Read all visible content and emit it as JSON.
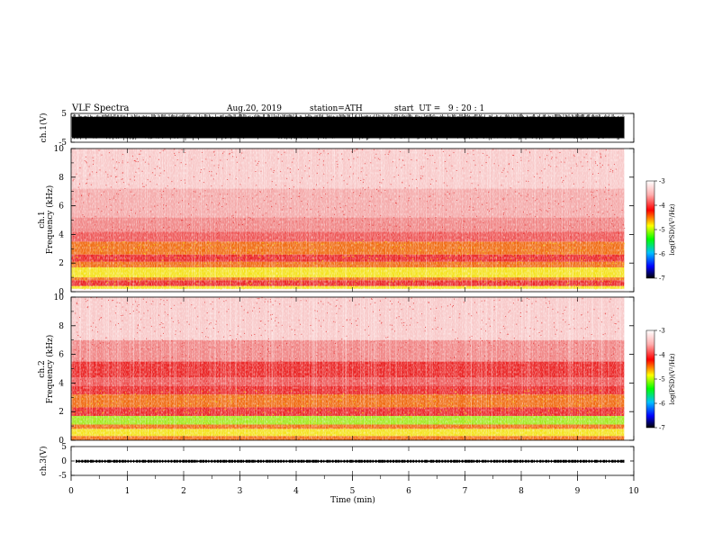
{
  "header": {
    "title": "VLF Spectra",
    "date": "Aug.20, 2019",
    "station": "station=ATH",
    "start_time": "start  UT =   9 : 20 : 1"
  },
  "chart_data": [
    {
      "type": "line",
      "panel": "ch1-waveform",
      "ylabel": "ch.1(V)",
      "ylim": [
        -5,
        5
      ],
      "yticks": [
        "5",
        "-5"
      ],
      "xlim": [
        0,
        10
      ],
      "data_end_min": 9.83,
      "amplitude_band_V": [
        -3.6,
        3.8
      ],
      "color": "#000000"
    },
    {
      "type": "heatmap",
      "panel": "ch1-spectrogram",
      "ylabel": "ch.1\nFrequency (kHz)",
      "ylim": [
        0,
        10
      ],
      "yticks": [
        "0",
        "2",
        "4",
        "6",
        "8",
        "10"
      ],
      "xlim": [
        0,
        10
      ],
      "data_end_min": 9.83,
      "bands": [
        {
          "f0": 0.0,
          "f1": 0.2,
          "level": "white"
        },
        {
          "f0": 0.2,
          "f1": 0.4,
          "level": "yellow"
        },
        {
          "f0": 0.4,
          "f1": 0.8,
          "level": "red"
        },
        {
          "f0": 0.8,
          "f1": 1.0,
          "level": "orange"
        },
        {
          "f0": 1.0,
          "f1": 1.7,
          "level": "yellow"
        },
        {
          "f0": 1.7,
          "f1": 2.1,
          "level": "orange"
        },
        {
          "f0": 2.1,
          "f1": 2.6,
          "level": "red"
        },
        {
          "f0": 2.6,
          "f1": 3.5,
          "level": "orange"
        },
        {
          "f0": 3.5,
          "f1": 4.2,
          "level": "red-light"
        },
        {
          "f0": 4.2,
          "f1": 5.2,
          "level": "pink"
        },
        {
          "f0": 5.2,
          "f1": 7.2,
          "level": "pink-light"
        },
        {
          "f0": 7.2,
          "f1": 10.0,
          "level": "white-pink"
        }
      ]
    },
    {
      "type": "heatmap",
      "panel": "ch2-spectrogram",
      "ylabel": "ch.2\nFrequency (kHz)",
      "ylim": [
        0,
        10
      ],
      "yticks": [
        "0",
        "2",
        "4",
        "6",
        "8",
        "10"
      ],
      "xlim": [
        0,
        10
      ],
      "data_end_min": 9.83,
      "bands": [
        {
          "f0": 0.0,
          "f1": 0.3,
          "level": "orange"
        },
        {
          "f0": 0.3,
          "f1": 0.8,
          "level": "yellow"
        },
        {
          "f0": 0.8,
          "f1": 1.1,
          "level": "orange"
        },
        {
          "f0": 1.1,
          "f1": 1.7,
          "level": "green"
        },
        {
          "f0": 1.7,
          "f1": 2.3,
          "level": "red"
        },
        {
          "f0": 2.3,
          "f1": 3.2,
          "level": "orange"
        },
        {
          "f0": 3.2,
          "f1": 3.8,
          "level": "red"
        },
        {
          "f0": 3.8,
          "f1": 4.4,
          "level": "red-light"
        },
        {
          "f0": 4.4,
          "f1": 5.5,
          "level": "red"
        },
        {
          "f0": 5.5,
          "f1": 7.0,
          "level": "pink"
        },
        {
          "f0": 7.0,
          "f1": 10.0,
          "level": "white-pink"
        }
      ]
    },
    {
      "type": "line",
      "panel": "ch3-waveform",
      "ylabel": "ch.3(V)",
      "ylim": [
        -5,
        5
      ],
      "yticks": [
        "5",
        "0",
        "-5"
      ],
      "xlim": [
        0,
        10
      ],
      "data_end_min": 9.83,
      "signal_band_V": [
        -0.6,
        0.4
      ],
      "color": "#000000"
    }
  ],
  "xaxis": {
    "label": "Time (min)",
    "ticks": [
      "0",
      "1",
      "2",
      "3",
      "4",
      "5",
      "6",
      "7",
      "8",
      "9",
      "10"
    ]
  },
  "colorbar": {
    "label": "log(PSD)(V²/Hz)",
    "ticks": [
      "-3",
      "-4",
      "-5",
      "-6",
      "-7"
    ],
    "colors": [
      "#ffffff",
      "#ffb0b0",
      "#ff0000",
      "#ffff00",
      "#00ff00",
      "#00c0ff",
      "#0000ff",
      "#000000"
    ]
  },
  "level_colors": {
    "white": "#fff4f4",
    "white-pink": "#f8c8c8",
    "pink-light": "#f4a8a8",
    "pink": "#f08484",
    "red-light": "#ee5555",
    "red": "#ea2424",
    "orange": "#f06a10",
    "yellow": "#f4e21c",
    "green": "#a4e81e"
  }
}
